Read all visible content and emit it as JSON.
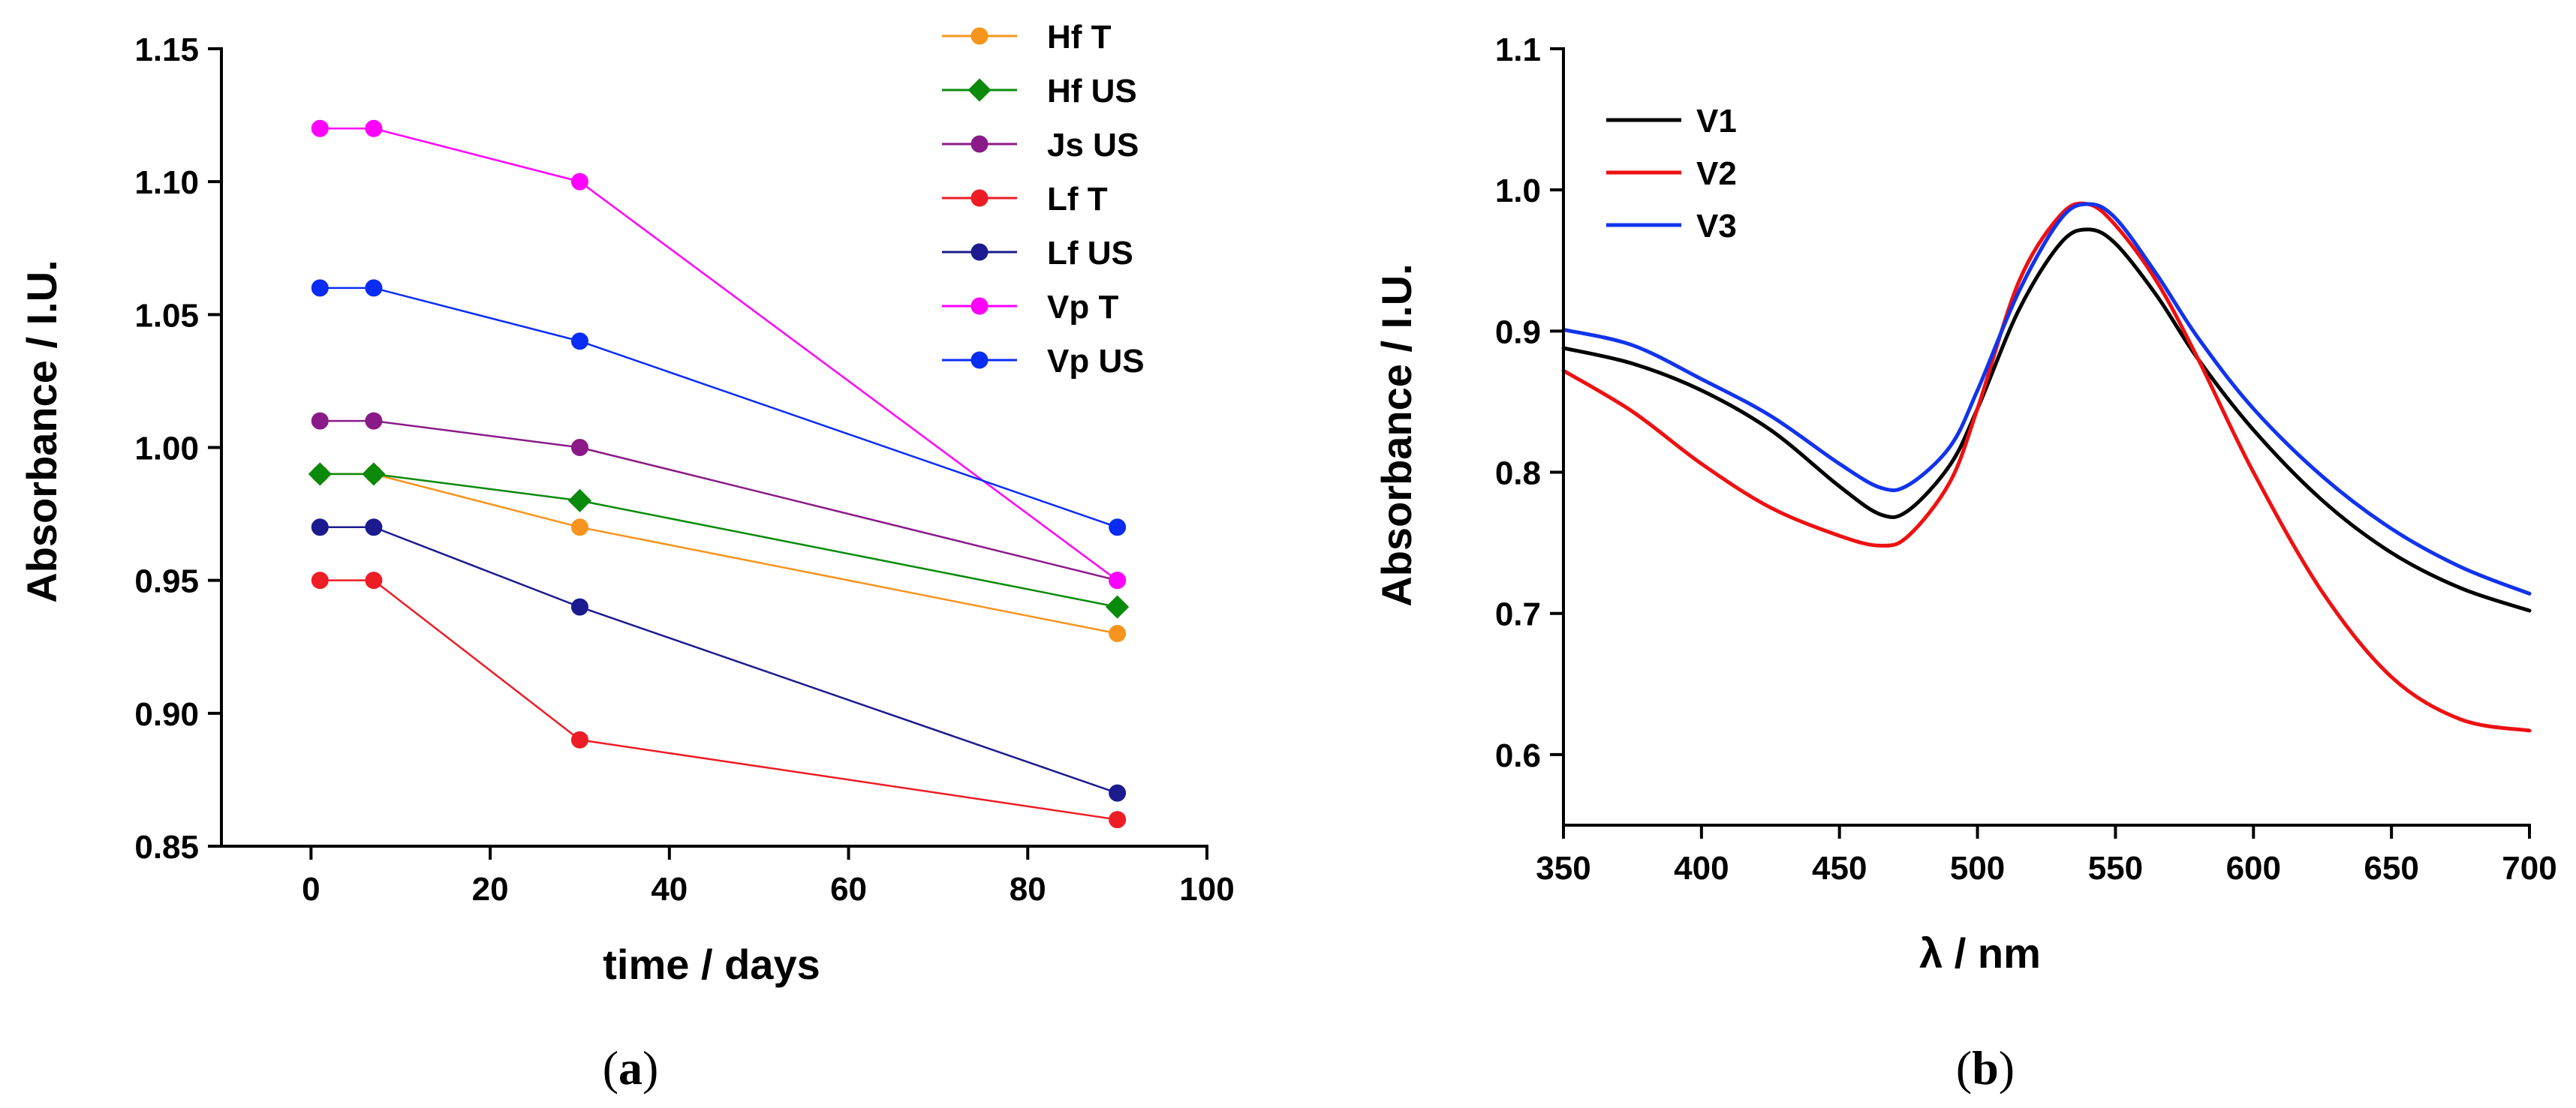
{
  "chart_data": [
    {
      "type": "line",
      "panel_label": {
        "open": "(",
        "letter": "a",
        "close": ")"
      },
      "xlabel": "time / days",
      "ylabel": "Absorbance / I.U.",
      "xlim": [
        -10,
        100
      ],
      "ylim": [
        0.85,
        1.15
      ],
      "xticks": [
        0,
        20,
        40,
        60,
        80,
        100
      ],
      "xtick_labels": [
        "0",
        "20",
        "40",
        "60",
        "80",
        "100"
      ],
      "yticks": [
        0.85,
        0.9,
        0.95,
        1.0,
        1.05,
        1.1,
        1.15
      ],
      "ytick_labels": [
        "0.85",
        "0.90",
        "0.95",
        "1.00",
        "1.05",
        "1.10",
        "1.15"
      ],
      "grid": false,
      "legend_position": "top-right",
      "x": [
        1,
        7,
        30,
        90
      ],
      "series": [
        {
          "name": "Hf T",
          "color": "#f7941d",
          "marker": "circle",
          "values": [
            0.99,
            0.99,
            0.97,
            0.93
          ]
        },
        {
          "name": "Hf US",
          "color": "#0a8a0a",
          "marker": "diamond",
          "values": [
            0.99,
            0.99,
            0.98,
            0.94
          ]
        },
        {
          "name": "Js US",
          "color": "#8b1a89",
          "marker": "circle",
          "values": [
            1.01,
            1.01,
            1.0,
            0.95
          ]
        },
        {
          "name": "Lf T",
          "color": "#ee1c24",
          "marker": "circle",
          "values": [
            0.95,
            0.95,
            0.89,
            0.86
          ]
        },
        {
          "name": "Lf US",
          "color": "#1b1b8f",
          "marker": "circle",
          "values": [
            0.97,
            0.97,
            0.94,
            0.87
          ]
        },
        {
          "name": "Vp T",
          "color": "#ff00ff",
          "marker": "circle",
          "values": [
            1.12,
            1.12,
            1.1,
            0.95
          ]
        },
        {
          "name": "Vp US",
          "color": "#0a2cf5",
          "marker": "circle",
          "values": [
            1.06,
            1.06,
            1.04,
            0.97
          ]
        }
      ]
    },
    {
      "type": "line",
      "panel_label": {
        "open": "(",
        "letter": "b",
        "close": ")"
      },
      "xlabel": "λ / nm",
      "ylabel": "Absorbance / I.U.",
      "xlim": [
        350,
        700
      ],
      "ylim": [
        0.55,
        1.1
      ],
      "xticks": [
        350,
        400,
        450,
        500,
        550,
        600,
        650,
        700
      ],
      "xtick_labels": [
        "350",
        "400",
        "450",
        "500",
        "550",
        "600",
        "650",
        "700"
      ],
      "yticks": [
        0.6,
        0.7,
        0.8,
        0.9,
        1.0,
        1.1
      ],
      "ytick_labels": [
        "0.6",
        "0.7",
        "0.8",
        "0.9",
        "1.0",
        "1.1"
      ],
      "grid": false,
      "legend_position": "top-left",
      "x": [
        350,
        375,
        400,
        425,
        450,
        465,
        475,
        490,
        500,
        515,
        530,
        540,
        550,
        565,
        580,
        600,
        625,
        650,
        675,
        700
      ],
      "series": [
        {
          "name": "V1",
          "color": "#000000",
          "values": [
            0.888,
            0.877,
            0.858,
            0.83,
            0.79,
            0.77,
            0.773,
            0.805,
            0.845,
            0.915,
            0.962,
            0.972,
            0.962,
            0.925,
            0.88,
            0.83,
            0.78,
            0.743,
            0.718,
            0.702
          ]
        },
        {
          "name": "V2",
          "color": "#ee1111",
          "values": [
            0.872,
            0.843,
            0.806,
            0.775,
            0.755,
            0.748,
            0.755,
            0.793,
            0.845,
            0.935,
            0.982,
            0.99,
            0.975,
            0.935,
            0.88,
            0.8,
            0.715,
            0.655,
            0.625,
            0.617
          ]
        },
        {
          "name": "V3",
          "color": "#1133ee",
          "values": [
            0.901,
            0.89,
            0.866,
            0.84,
            0.806,
            0.789,
            0.791,
            0.818,
            0.858,
            0.928,
            0.979,
            0.99,
            0.98,
            0.94,
            0.895,
            0.845,
            0.797,
            0.76,
            0.733,
            0.714
          ]
        }
      ]
    }
  ]
}
